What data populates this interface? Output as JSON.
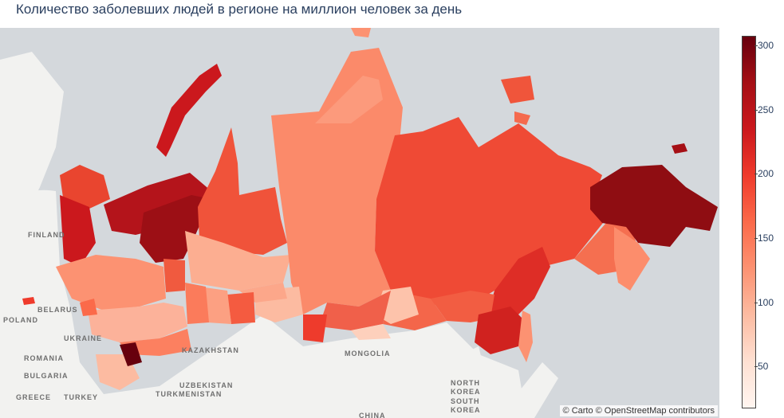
{
  "title": "Количество заболевших людей в регионе на миллион человек за день",
  "colorbar": {
    "min": 18,
    "max": 308,
    "ticks": [
      50,
      100,
      150,
      200,
      250,
      300
    ],
    "colors": [
      "#fff5f0",
      "#fee0d2",
      "#fcbba1",
      "#fc9272",
      "#fb6a4a",
      "#ef3b2c",
      "#cb181d",
      "#a50f15",
      "#67000d"
    ]
  },
  "labels": {
    "finland": "FINLAND",
    "belarus": "BELARUS",
    "poland": "POLAND",
    "ukraine": "UKRAINE",
    "romania": "ROMANIA",
    "bulgaria": "BULGARIA",
    "greece": "GREECE",
    "turkey": "TURKEY",
    "kazakhstan": "KAZAKHSTAN",
    "uzbekistan": "UZBEKISTAN",
    "turkmenistan": "TURKMENISTAN",
    "mongolia": "MONGOLIA",
    "north_korea_1": "NORTH",
    "north_korea_2": "KOREA",
    "south_korea_1": "SOUTH",
    "south_korea_2": "KOREA",
    "china": "CHINA"
  },
  "attribution": "© Carto © OpenStreetMap contributors"
}
